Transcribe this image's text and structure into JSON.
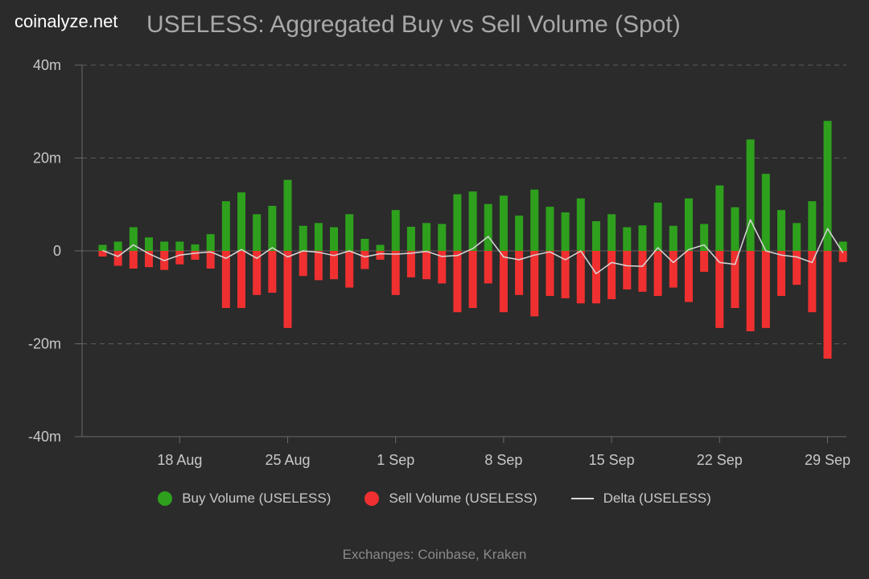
{
  "brand": "coinalyze.net",
  "title": "USELESS: Aggregated Buy vs Sell Volume (Spot)",
  "footer": "Exchanges: Coinbase, Kraken",
  "colors": {
    "buy": "#2ea01d",
    "sell": "#f03030",
    "delta": "#d8d8d8",
    "grid": "#5c5c5c",
    "axis": "#6a6a6a"
  },
  "legend": [
    {
      "label": "Buy Volume (USELESS)",
      "color_key": "buy",
      "shape": "dot"
    },
    {
      "label": "Sell Volume (USELESS)",
      "color_key": "sell",
      "shape": "dot"
    },
    {
      "label": "Delta (USELESS)",
      "color_key": "delta",
      "shape": "line"
    }
  ],
  "chart_data": {
    "type": "bar",
    "title": "USELESS: Aggregated Buy vs Sell Volume (Spot)",
    "xlabel": "",
    "ylabel": "",
    "ylim": [
      -40,
      40
    ],
    "unit": "m",
    "y_ticks": [
      {
        "value": 40,
        "label": "40m"
      },
      {
        "value": 20,
        "label": "20m"
      },
      {
        "value": 0,
        "label": "0"
      },
      {
        "value": -20,
        "label": "-20m"
      },
      {
        "value": -40,
        "label": "-40m"
      }
    ],
    "x_ticks": [
      {
        "index": 5,
        "label": "18 Aug"
      },
      {
        "index": 12,
        "label": "25 Aug"
      },
      {
        "index": 19,
        "label": "1 Sep"
      },
      {
        "index": 26,
        "label": "8 Sep"
      },
      {
        "index": 33,
        "label": "15 Sep"
      },
      {
        "index": 40,
        "label": "22 Sep"
      },
      {
        "index": 47,
        "label": "29 Sep"
      }
    ],
    "categories": [
      "13 Aug",
      "14 Aug",
      "15 Aug",
      "16 Aug",
      "17 Aug",
      "18 Aug",
      "19 Aug",
      "20 Aug",
      "21 Aug",
      "22 Aug",
      "23 Aug",
      "24 Aug",
      "25 Aug",
      "26 Aug",
      "27 Aug",
      "28 Aug",
      "29 Aug",
      "30 Aug",
      "31 Aug",
      "1 Sep",
      "2 Sep",
      "3 Sep",
      "4 Sep",
      "5 Sep",
      "6 Sep",
      "7 Sep",
      "8 Sep",
      "9 Sep",
      "10 Sep",
      "11 Sep",
      "12 Sep",
      "13 Sep",
      "14 Sep",
      "15 Sep",
      "16 Sep",
      "17 Sep",
      "18 Sep",
      "19 Sep",
      "20 Sep",
      "21 Sep",
      "22 Sep",
      "23 Sep",
      "24 Sep",
      "25 Sep",
      "26 Sep",
      "27 Sep",
      "28 Sep",
      "29 Sep",
      "30 Sep"
    ],
    "series": [
      {
        "name": "Buy Volume (USELESS)",
        "values": [
          1.3,
          2.0,
          5.1,
          2.9,
          2.0,
          2.0,
          1.4,
          3.6,
          10.7,
          12.6,
          7.9,
          9.7,
          15.3,
          5.4,
          6.0,
          5.1,
          7.9,
          2.6,
          1.3,
          8.8,
          5.2,
          6.0,
          5.8,
          12.2,
          12.8,
          10.1,
          11.9,
          7.6,
          13.2,
          9.5,
          8.3,
          11.3,
          6.4,
          7.9,
          5.1,
          5.5,
          10.4,
          5.4,
          11.3,
          5.8,
          14.1,
          9.4,
          24.0,
          16.6,
          8.8,
          6.0,
          10.7,
          28.0,
          2.0
        ]
      },
      {
        "name": "Sell Volume (USELESS)",
        "values": [
          -1.2,
          -3.2,
          -3.8,
          -3.5,
          -4.1,
          -2.9,
          -1.9,
          -3.8,
          -12.3,
          -12.3,
          -9.5,
          -9.0,
          -16.6,
          -5.4,
          -6.3,
          -6.1,
          -7.9,
          -3.9,
          -1.9,
          -9.5,
          -5.7,
          -6.1,
          -7.0,
          -13.2,
          -12.3,
          -7.0,
          -13.2,
          -9.5,
          -14.1,
          -9.7,
          -10.2,
          -11.3,
          -11.3,
          -10.4,
          -8.3,
          -8.8,
          -9.7,
          -7.9,
          -11.0,
          -4.5,
          -16.6,
          -12.3,
          -17.3,
          -16.6,
          -9.7,
          -7.3,
          -13.2,
          -23.2,
          -2.4
        ]
      },
      {
        "name": "Delta (USELESS)",
        "values": [
          0.1,
          -1.2,
          1.3,
          -0.6,
          -2.1,
          -0.9,
          -0.5,
          -0.2,
          -1.6,
          0.3,
          -1.6,
          0.7,
          -1.3,
          0.0,
          -0.3,
          -1.0,
          0.0,
          -1.3,
          -0.6,
          -0.7,
          -0.5,
          -0.1,
          -1.2,
          -1.0,
          0.5,
          3.1,
          -1.3,
          -1.9,
          -0.9,
          -0.2,
          -1.9,
          0.0,
          -4.9,
          -2.5,
          -3.2,
          -3.3,
          0.7,
          -2.5,
          0.3,
          1.3,
          -2.5,
          -2.9,
          6.7,
          0.0,
          -0.9,
          -1.3,
          -2.5,
          4.8,
          -0.4
        ]
      }
    ]
  }
}
